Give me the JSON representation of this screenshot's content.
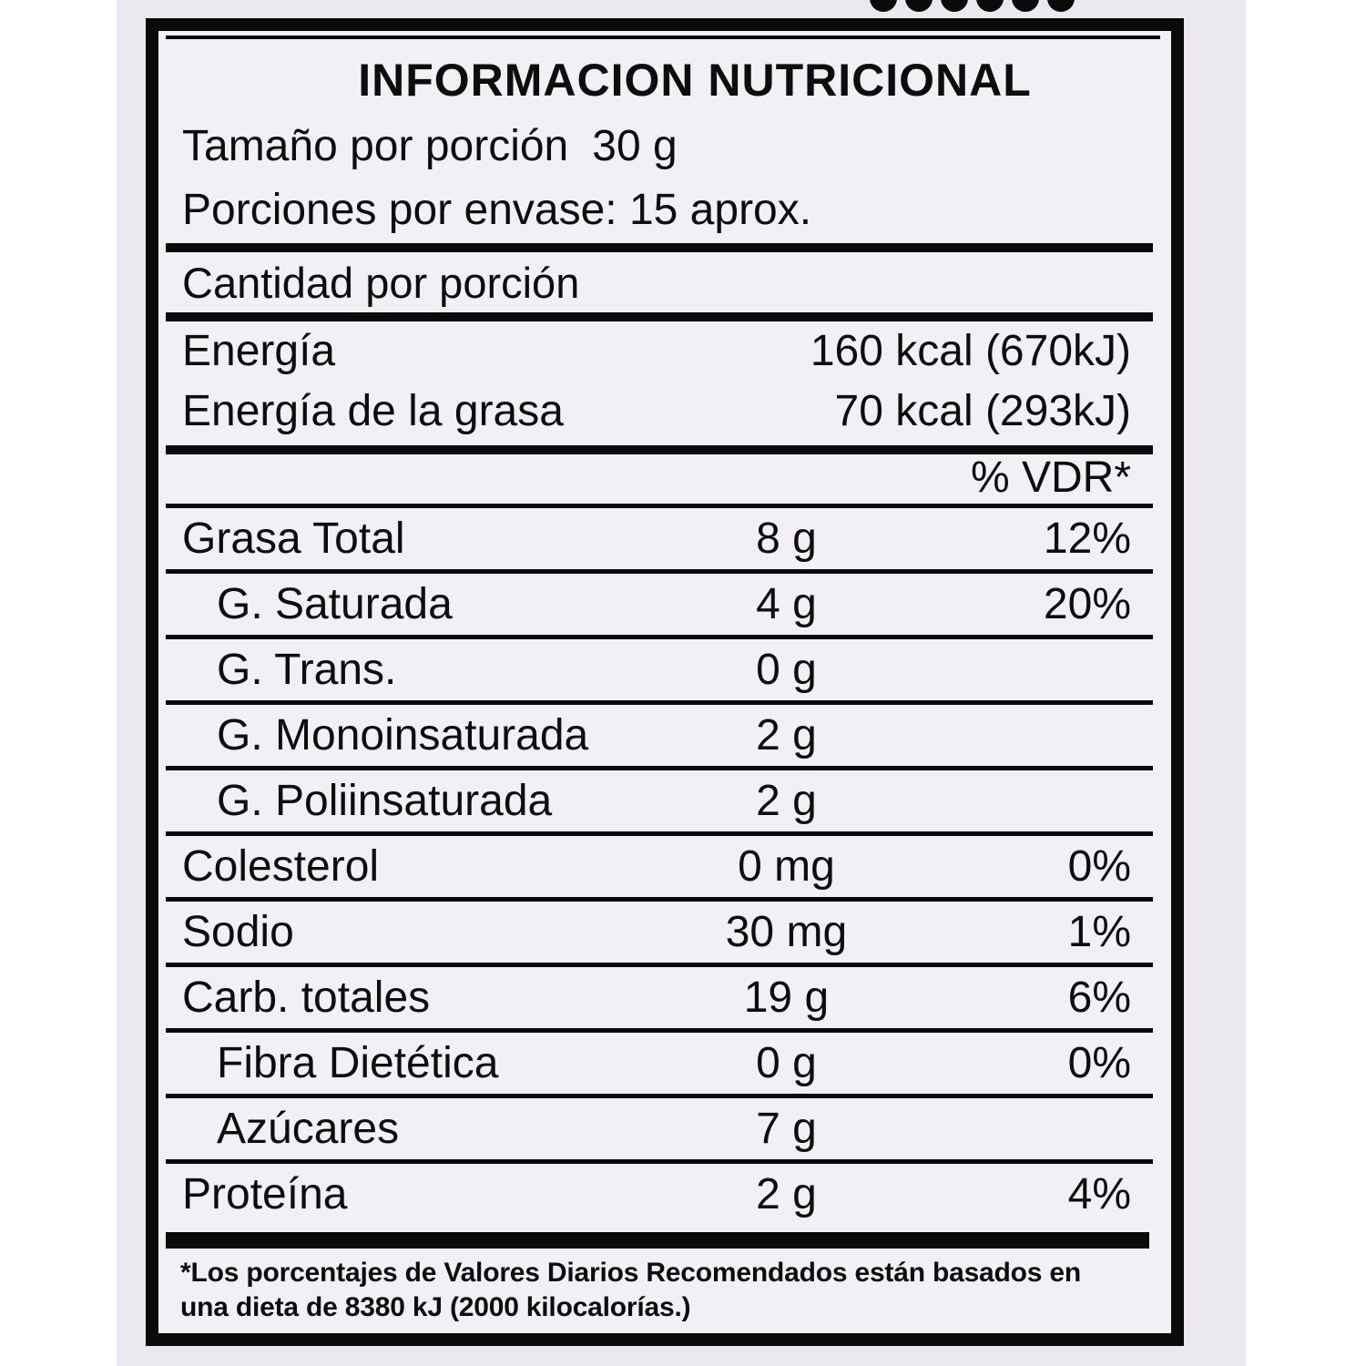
{
  "packaging": {
    "dots_count": 6
  },
  "label": {
    "title": "INFORMACION NUTRICIONAL",
    "serving": {
      "size_label": "Tamaño por porción",
      "size_value": "30 g",
      "per_container": "Porciones por envase: 15 aprox."
    },
    "amount_header": "Cantidad por porción",
    "energy_rows": [
      {
        "name": "Energía",
        "value": "160 kcal (670kJ)"
      },
      {
        "name": "Energía de la grasa",
        "value": "70 kcal (293kJ)"
      }
    ],
    "daily_value_header": "% VDR*",
    "nutrient_rows": [
      {
        "name": "Grasa Total",
        "amount": "8 g",
        "daily_value": "12%",
        "indent": false
      },
      {
        "name": "G. Saturada",
        "amount": "4 g",
        "daily_value": "20%",
        "indent": true
      },
      {
        "name": "G. Trans.",
        "amount": "0 g",
        "daily_value": "",
        "indent": true
      },
      {
        "name": "G. Monoinsaturada",
        "amount": "2 g",
        "daily_value": "",
        "indent": true
      },
      {
        "name": "G. Poliinsaturada",
        "amount": "2 g",
        "daily_value": "",
        "indent": true
      },
      {
        "name": "Colesterol",
        "amount": "0 mg",
        "daily_value": "0%",
        "indent": false
      },
      {
        "name": "Sodio",
        "amount": "30 mg",
        "daily_value": "1%",
        "indent": false
      },
      {
        "name": "Carb. totales",
        "amount": "19 g",
        "daily_value": "6%",
        "indent": false
      },
      {
        "name": "Fibra Dietética",
        "amount": "0 g",
        "daily_value": "0%",
        "indent": true
      },
      {
        "name": "Azúcares",
        "amount": "7 g",
        "daily_value": "",
        "indent": true
      },
      {
        "name": "Proteína",
        "amount": "2 g",
        "daily_value": "4%",
        "indent": false
      }
    ],
    "footnote_lines": [
      "*Los porcentajes de Valores Diarios Recomendados están basados en",
      "una dieta de 8380 kJ (2000 kilocalorías.)"
    ],
    "colors": {
      "ink": "#0d0d0d",
      "label_background": "#f2eff5",
      "package_background": "#ebe8ef",
      "page_background": "#ffffff"
    }
  }
}
